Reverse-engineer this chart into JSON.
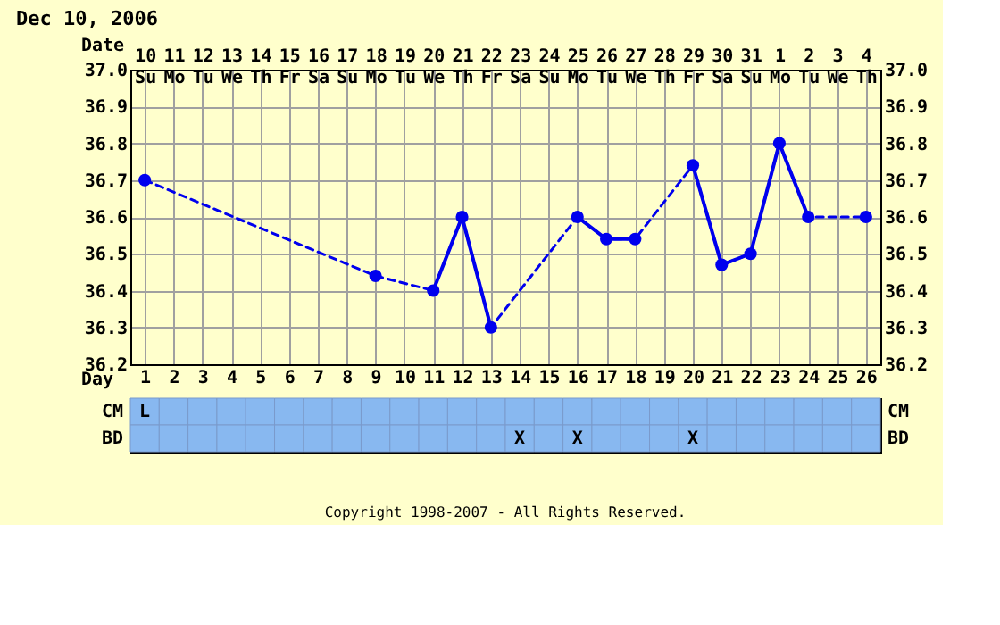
{
  "chart_data": [
    {
      "type": "line",
      "title": "Dec 10, 2006",
      "xlabel": "Day",
      "x2label": "Date",
      "series": [
        {
          "color": "#0000ee",
          "marker": "circle",
          "line_style": "dashed",
          "x": [
            1,
            9,
            11,
            12,
            13,
            16,
            17,
            18,
            20,
            21,
            22,
            23,
            24,
            26
          ],
          "values": [
            36.7,
            36.44,
            36.4,
            36.6,
            36.3,
            36.6,
            36.54,
            36.54,
            36.74,
            36.47,
            36.5,
            36.8,
            36.6,
            36.6
          ]
        },
        {
          "color": "#0000ee",
          "marker": "none",
          "line_style": "solid",
          "x": [
            11,
            12,
            13,
            14,
            16,
            17,
            18,
            19,
            20,
            21,
            22,
            23,
            24
          ],
          "values": [
            36.4,
            36.6,
            36.3,
            null,
            36.6,
            36.54,
            36.54,
            null,
            36.74,
            36.47,
            36.5,
            36.8,
            36.6
          ]
        }
      ],
      "xlim": [
        0.5,
        26.5
      ],
      "xticks": [
        1,
        2,
        3,
        4,
        5,
        6,
        7,
        8,
        9,
        10,
        11,
        12,
        13,
        14,
        15,
        16,
        17,
        18,
        19,
        20,
        21,
        22,
        23,
        24,
        25,
        26
      ],
      "x2lim": [
        "2006-12-09T12:00",
        "2007-01-04T12:00"
      ],
      "x2ticks": [
        {
          "value": "2006-12-10",
          "label": "10 Su"
        },
        {
          "value": "2006-12-11",
          "label": "11 Mo"
        },
        {
          "value": "2006-12-12",
          "label": "12 Tu"
        },
        {
          "value": "2006-12-13",
          "label": "13 We"
        },
        {
          "value": "2006-12-14",
          "label": "14 Th"
        },
        {
          "value": "2006-12-15",
          "label": "15 Fr"
        },
        {
          "value": "2006-12-16",
          "label": "16 Sa"
        },
        {
          "value": "2006-12-17",
          "label": "17 Su"
        },
        {
          "value": "2006-12-18",
          "label": "18 Mo"
        },
        {
          "value": "2006-12-19",
          "label": "19 Tu"
        },
        {
          "value": "2006-12-20",
          "label": "20 We"
        },
        {
          "value": "2006-12-21",
          "label": "21 Th"
        },
        {
          "value": "2006-12-22",
          "label": "22 Fr"
        },
        {
          "value": "2006-12-23",
          "label": "23 Sa"
        },
        {
          "value": "2006-12-24",
          "label": "24 Su"
        },
        {
          "value": "2006-12-25",
          "label": "25 Mo"
        },
        {
          "value": "2006-12-26",
          "label": "26 Tu"
        },
        {
          "value": "2006-12-27",
          "label": "27 We"
        },
        {
          "value": "2006-12-28",
          "label": "28 Th"
        },
        {
          "value": "2006-12-29",
          "label": "29 Fr"
        },
        {
          "value": "2006-12-30",
          "label": "30 Sa"
        },
        {
          "value": "2006-12-31",
          "label": "31 Su"
        },
        {
          "value": "2007-01-01",
          "label": "1 Mo"
        },
        {
          "value": "2007-01-02",
          "label": "2 Tu"
        },
        {
          "value": "2007-01-03",
          "label": "3 We"
        },
        {
          "value": "2007-01-04",
          "label": "4 Th"
        }
      ],
      "ylim": [
        36.2,
        37.0
      ],
      "yticks": [
        36.2,
        36.3,
        36.4,
        36.5,
        36.6,
        36.7,
        36.8,
        36.9,
        {
          "value": 37.0,
          "label": "37.0"
        }
      ],
      "y2lim": [
        36.2,
        37.0
      ],
      "y2ticks": [
        36.2,
        36.3,
        36.4,
        36.5,
        36.6,
        36.7,
        36.8,
        36.9,
        {
          "value": 37.0,
          "label": "37.0"
        }
      ],
      "grid": true,
      "annotations": [
        "Copyright 1998-2007 - All Rights Reserved."
      ]
    },
    {
      "type": "heatmap",
      "tick_labels": "y",
      "categories": [
        null,
        null,
        null,
        null,
        null,
        null,
        null,
        null,
        null,
        null,
        null,
        null,
        null,
        null,
        null,
        null,
        null,
        null,
        null,
        null,
        null,
        null,
        null,
        null,
        null,
        null
      ],
      "y_categories": [
        "CM",
        "BD"
      ],
      "y2_categories": [
        "CM",
        "BD"
      ],
      "cells": [
        [
          null,
          null,
          null,
          null,
          null,
          null,
          null,
          null,
          null,
          null,
          null,
          null,
          null,
          null,
          null,
          null,
          null,
          null,
          null,
          null,
          null,
          null,
          null,
          null,
          null,
          null
        ],
        [
          null,
          null,
          null,
          null,
          null,
          null,
          null,
          null,
          null,
          null,
          null,
          null,
          null,
          null,
          null,
          null,
          null,
          null,
          null,
          null,
          null,
          null,
          null,
          null,
          null,
          null
        ]
      ],
      "cell_labels": [
        [
          "L",
          null,
          null,
          null,
          null,
          null,
          null,
          null,
          null,
          null,
          null,
          null,
          null,
          null,
          null,
          null,
          null,
          null,
          null,
          null,
          null,
          null,
          null,
          null,
          null,
          null
        ],
        [
          null,
          null,
          null,
          null,
          null,
          null,
          null,
          null,
          null,
          null,
          null,
          null,
          null,
          "X",
          null,
          "X",
          null,
          null,
          null,
          "X",
          null,
          null,
          null,
          null,
          null,
          null
        ]
      ]
    }
  ]
}
